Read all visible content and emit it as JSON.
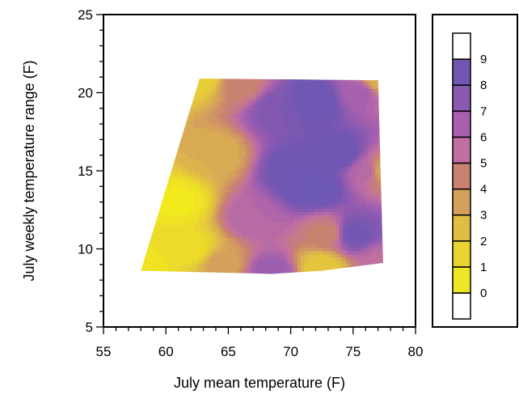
{
  "chart_data": {
    "type": "heatmap",
    "subtype": "filled-contour",
    "title": "",
    "xlabel": "July mean temperature (F)",
    "ylabel": "July weekly temperature range (F)",
    "xlim": [
      55,
      80
    ],
    "ylim": [
      5,
      25
    ],
    "x_ticks": [
      55,
      60,
      65,
      70,
      75,
      80
    ],
    "y_ticks": [
      5,
      10,
      15,
      20,
      25
    ],
    "x_tick_labels": [
      "55",
      "60",
      "65",
      "70",
      "75",
      "80"
    ],
    "y_tick_labels": [
      "5",
      "10",
      "15",
      "20",
      "25"
    ],
    "grid": false,
    "colorbar": {
      "position": "right",
      "levels": [
        "0",
        "1",
        "2",
        "3",
        "4",
        "5",
        "6",
        "7",
        "8",
        "9"
      ],
      "colors": [
        "#ffffff",
        "#f0e629",
        "#ead431",
        "#e0bd45",
        "#d4a05c",
        "#c98270",
        "#c070a0",
        "#a660ae",
        "#8a59b0",
        "#7257b2",
        "#ffffff"
      ],
      "low_color": "#f2ea1d",
      "high_color": "#6d58b3"
    },
    "hull": [
      [
        58,
        8.6
      ],
      [
        62.7,
        20.9
      ],
      [
        77.0,
        20.8
      ],
      [
        77.4,
        9.1
      ],
      [
        72.5,
        8.6
      ],
      [
        68.5,
        8.4
      ]
    ],
    "surface": [
      {
        "x": 58.0,
        "y": 8.6,
        "v": 0.2
      },
      {
        "x": 61.0,
        "y": 13.0,
        "v": 0.1
      },
      {
        "x": 62.7,
        "y": 20.9,
        "v": 1.2
      },
      {
        "x": 62.0,
        "y": 10.0,
        "v": 0.6
      },
      {
        "x": 64.0,
        "y": 16.0,
        "v": 2.5
      },
      {
        "x": 64.5,
        "y": 9.0,
        "v": 3.0
      },
      {
        "x": 66.0,
        "y": 20.5,
        "v": 4.0
      },
      {
        "x": 67.0,
        "y": 12.0,
        "v": 5.5
      },
      {
        "x": 68.5,
        "y": 8.4,
        "v": 6.5
      },
      {
        "x": 69.0,
        "y": 19.0,
        "v": 7.5
      },
      {
        "x": 70.5,
        "y": 15.0,
        "v": 8.5
      },
      {
        "x": 72.0,
        "y": 14.0,
        "v": 9.2
      },
      {
        "x": 72.0,
        "y": 19.5,
        "v": 8.8
      },
      {
        "x": 72.5,
        "y": 8.8,
        "v": 1.5
      },
      {
        "x": 73.0,
        "y": 11.0,
        "v": 4.0
      },
      {
        "x": 74.0,
        "y": 16.0,
        "v": 8.5
      },
      {
        "x": 75.0,
        "y": 11.0,
        "v": 8.0
      },
      {
        "x": 75.5,
        "y": 20.0,
        "v": 6.0
      },
      {
        "x": 76.0,
        "y": 15.0,
        "v": 5.5
      },
      {
        "x": 77.0,
        "y": 20.8,
        "v": 2.5
      },
      {
        "x": 77.3,
        "y": 15.0,
        "v": 3.0
      },
      {
        "x": 77.4,
        "y": 9.1,
        "v": 5.0
      }
    ]
  }
}
